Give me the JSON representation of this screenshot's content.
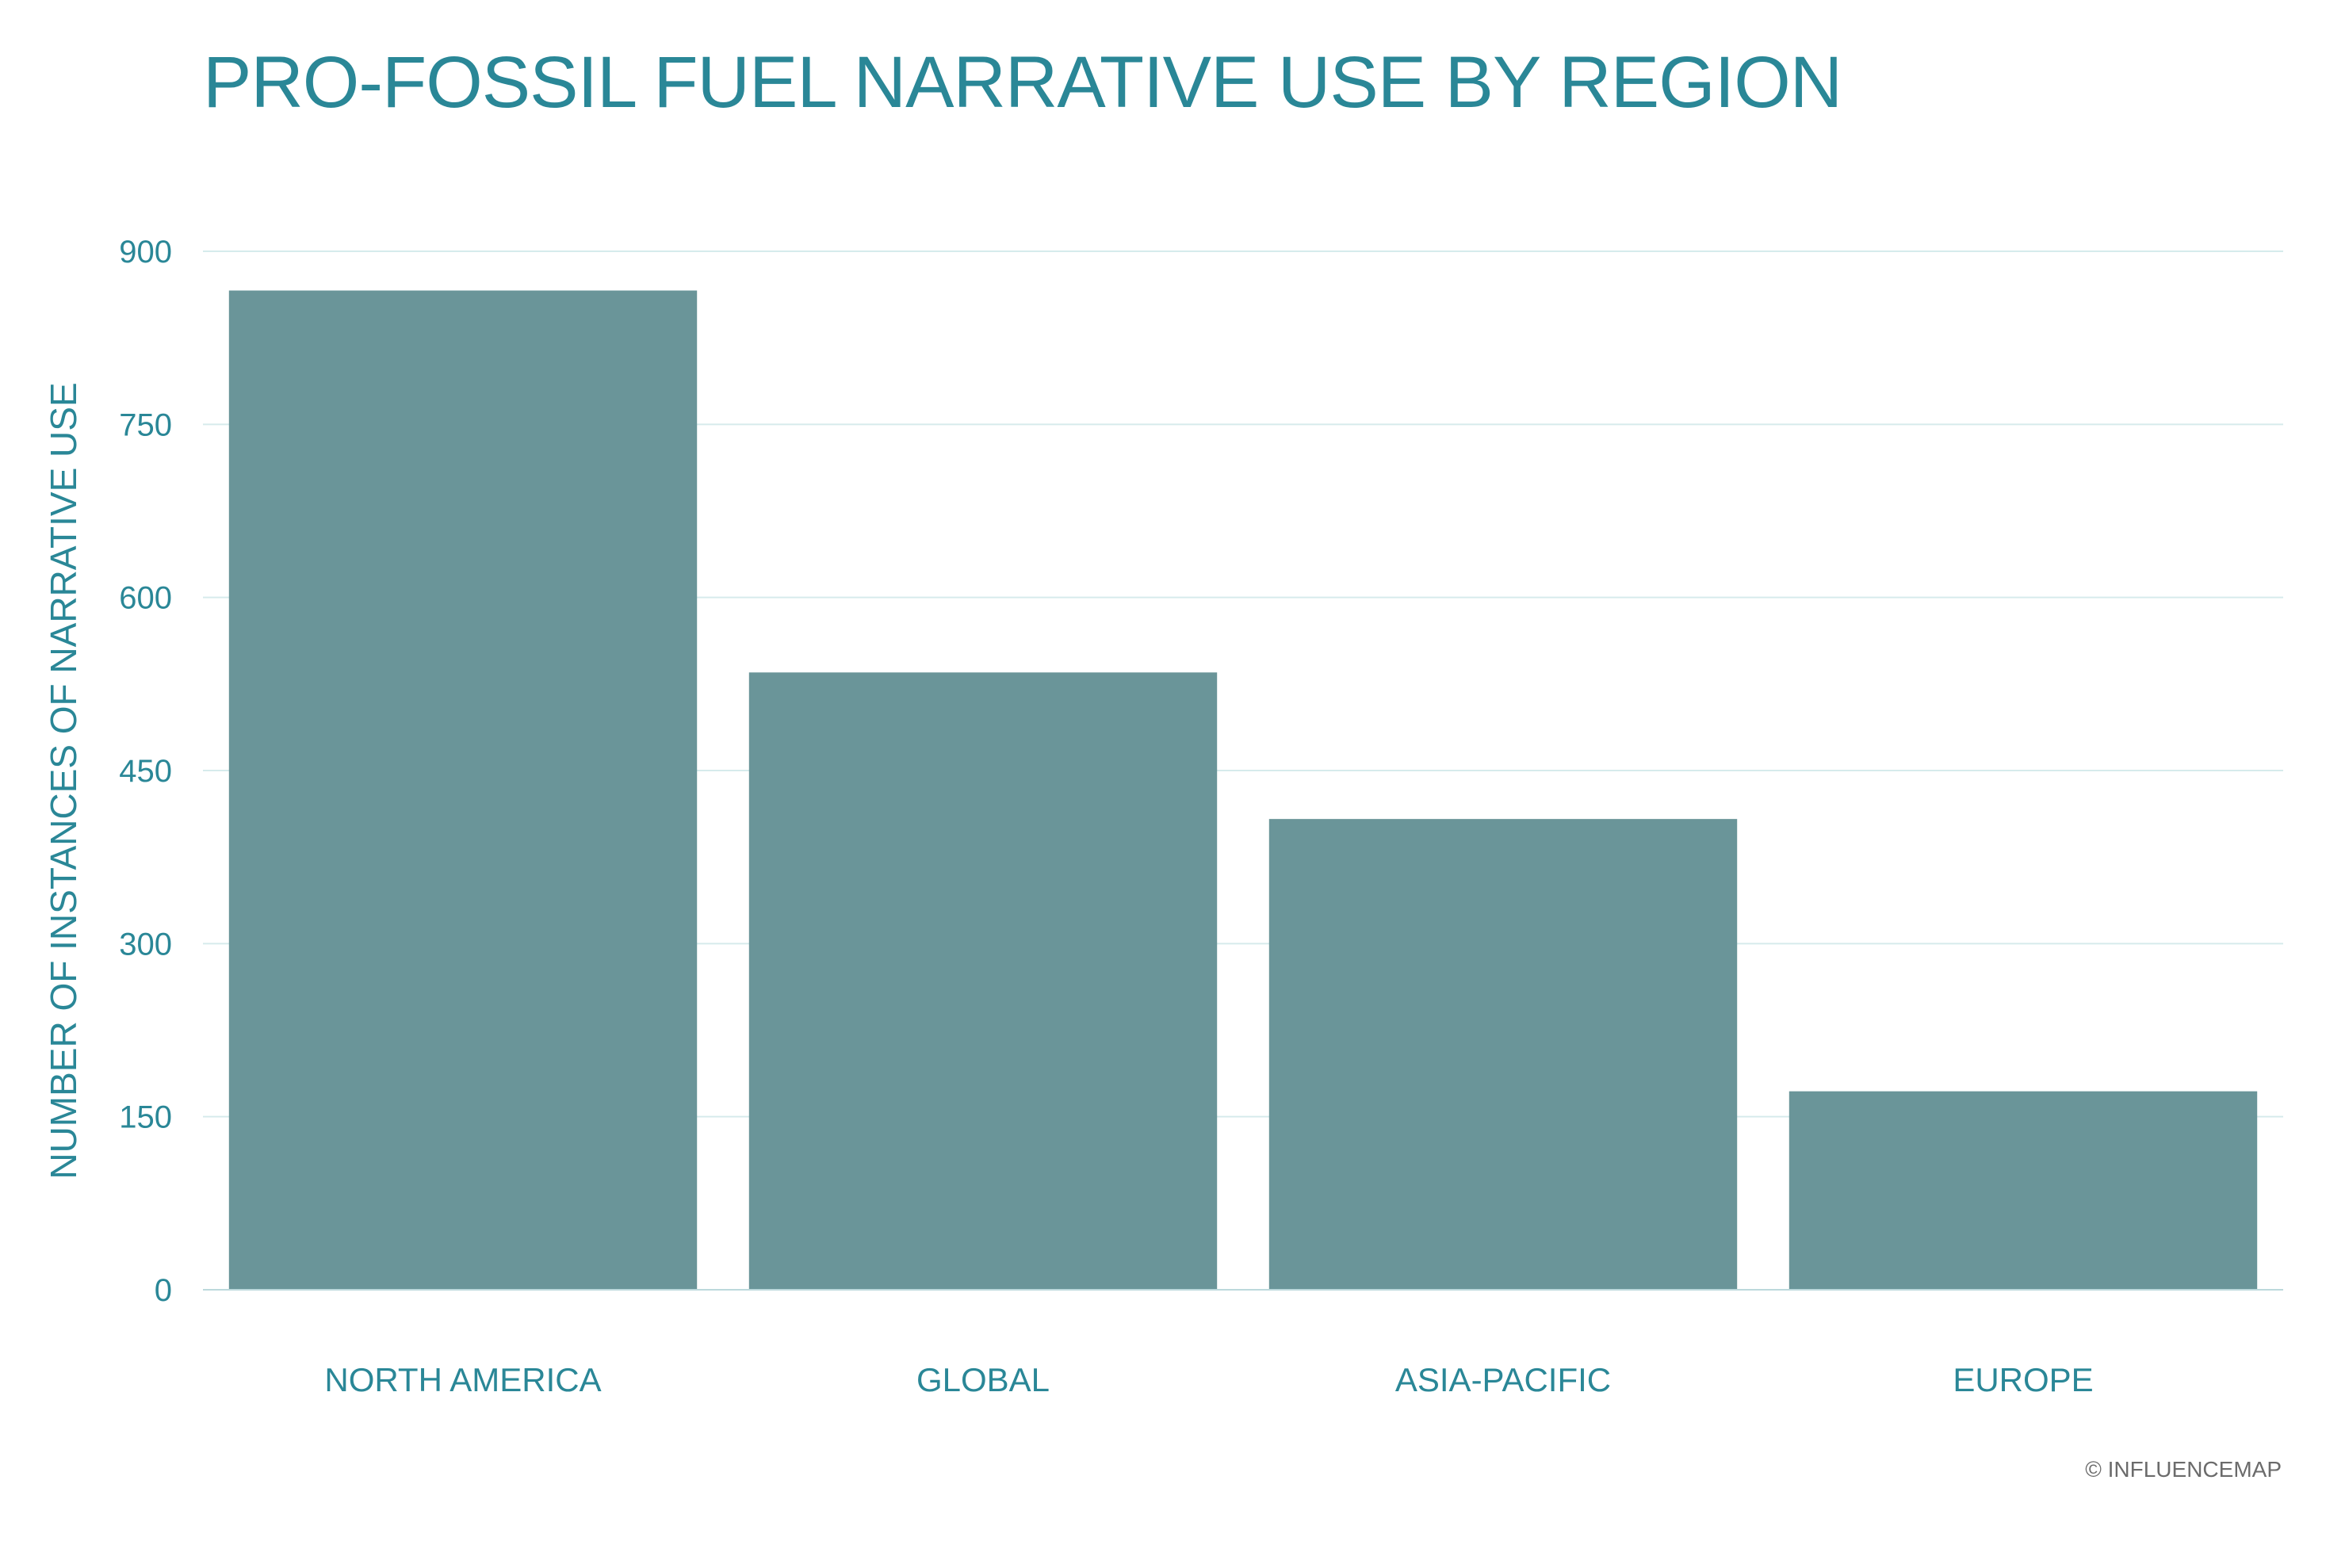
{
  "chart_data": {
    "type": "bar",
    "title": "PRO-FOSSIL FUEL NARRATIVE USE BY REGION",
    "xlabel": "",
    "ylabel": "NUMBER OF INSTANCES OF NARRATIVE USE",
    "categories": [
      "NORTH AMERICA",
      "GLOBAL",
      "ASIA-PACIFIC",
      "EUROPE"
    ],
    "values": [
      866,
      535,
      408,
      172
    ],
    "ylim": [
      0,
      900
    ],
    "yticks": [
      0,
      150,
      300,
      450,
      600,
      750,
      900
    ],
    "grid": true,
    "legend": "none",
    "colors": {
      "bar": "#6a9599",
      "text": "#2a8797",
      "grid": "#d6ebec",
      "axis": "#bcd9dc",
      "credit": "#6b6b6b"
    }
  },
  "footer": {
    "credit": "© INFLUENCEMAP"
  }
}
